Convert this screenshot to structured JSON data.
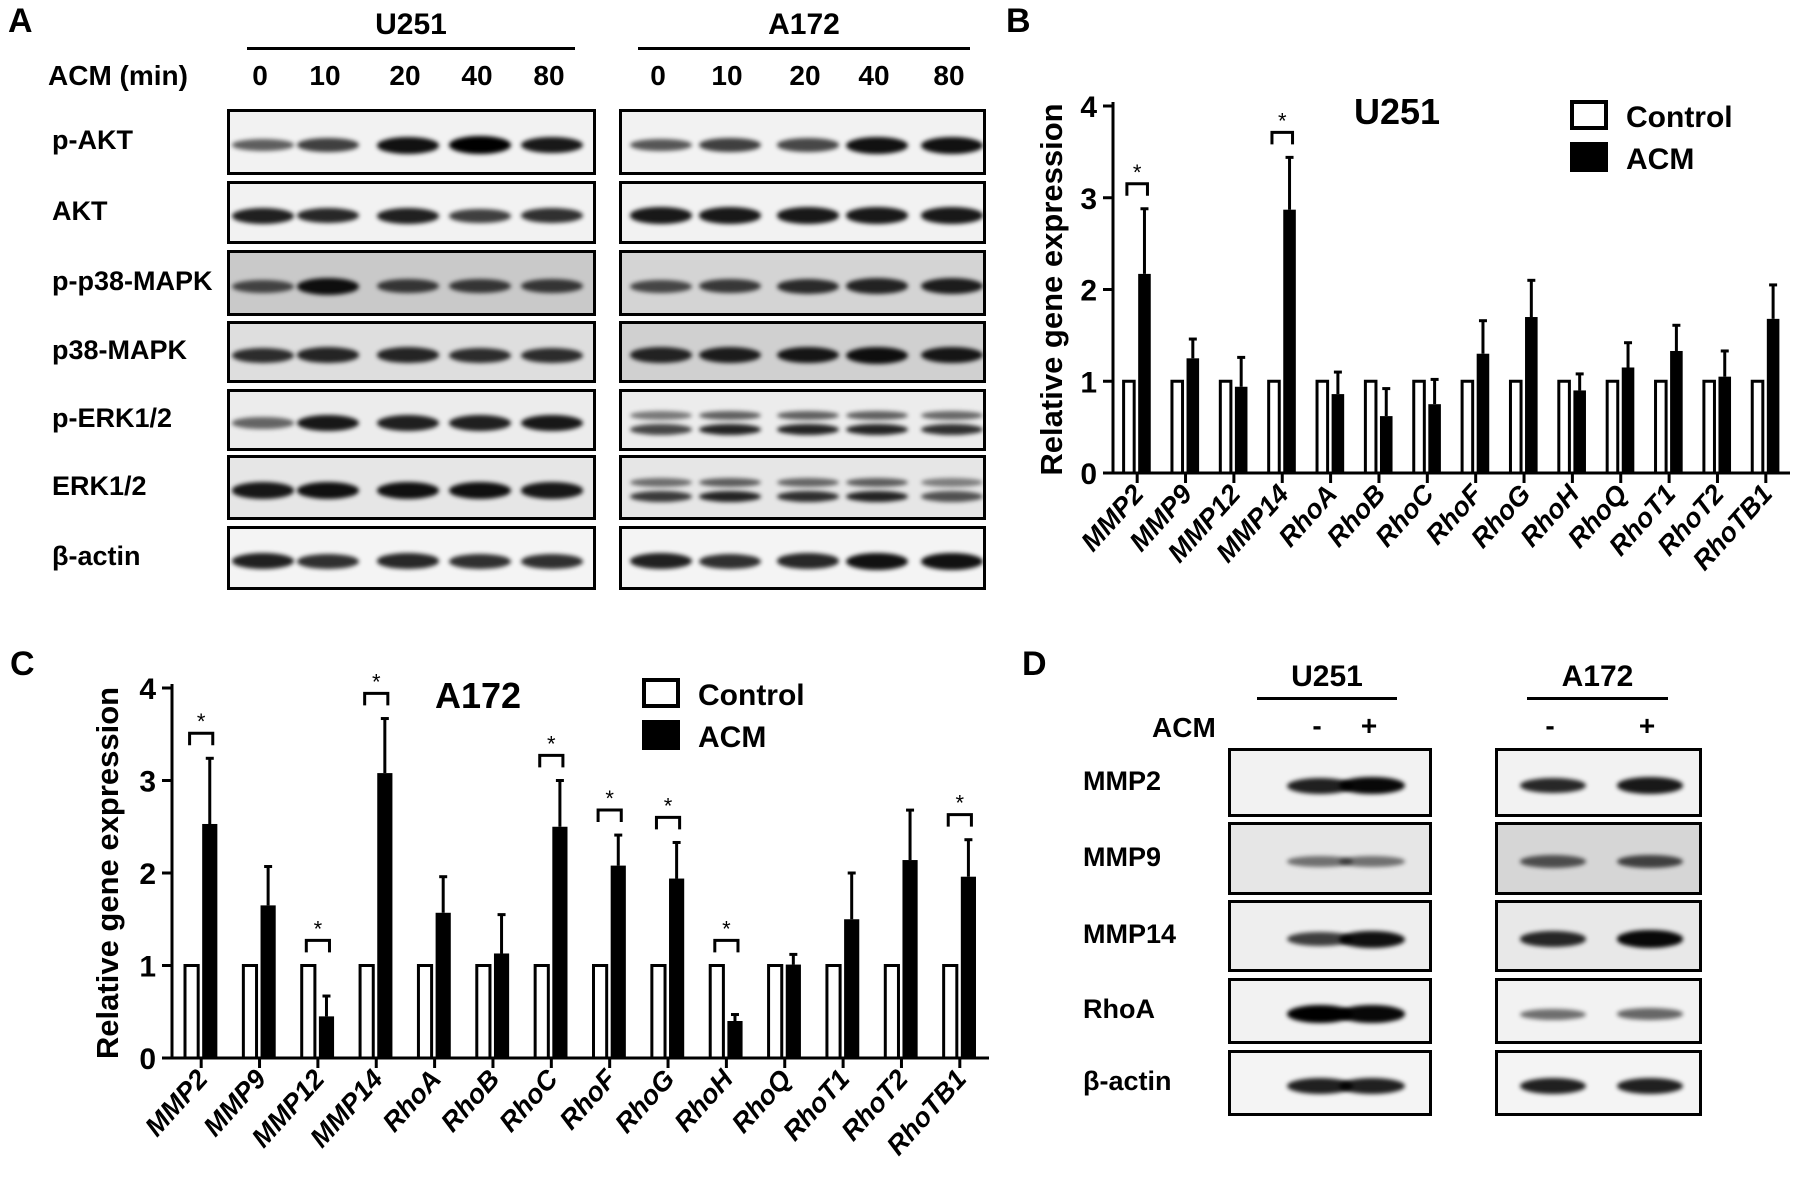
{
  "panel_a": {
    "label": "A",
    "row_label_header": "ACM (min)",
    "timepoints": [
      "0",
      "10",
      "20",
      "40",
      "80"
    ],
    "cell_lines": [
      {
        "name": "U251",
        "rows": [
          {
            "protein": "p-AKT",
            "band_intensity": [
              0.4,
              0.6,
              0.9,
              1,
              0.85
            ],
            "background": "#f2f2f2",
            "doublet": false
          },
          {
            "protein": "AKT",
            "band_intensity": [
              0.8,
              0.75,
              0.8,
              0.6,
              0.7
            ],
            "background": "#f2f2f2",
            "doublet": false
          },
          {
            "protein": "p-p38-MAPK",
            "band_intensity": [
              0.5,
              0.9,
              0.6,
              0.6,
              0.6
            ],
            "background": "#c9c9c9",
            "doublet": false
          },
          {
            "protein": "p38-MAPK",
            "band_intensity": [
              0.7,
              0.75,
              0.75,
              0.7,
              0.7
            ],
            "background": "#dedede",
            "doublet": false
          },
          {
            "protein": "p-ERK1/2",
            "band_intensity": [
              0.35,
              0.85,
              0.8,
              0.8,
              0.85
            ],
            "background": "#ececec",
            "doublet": false
          },
          {
            "protein": "ERK1/2",
            "band_intensity": [
              0.85,
              0.9,
              0.9,
              0.9,
              0.85
            ],
            "background": "#e6e6e6",
            "doublet": false
          },
          {
            "protein": "β-actin",
            "band_intensity": [
              0.8,
              0.7,
              0.75,
              0.7,
              0.7
            ],
            "background": "#f4f4f4",
            "doublet": false
          }
        ]
      },
      {
        "name": "A172",
        "rows": [
          {
            "protein": "p-AKT",
            "band_intensity": [
              0.45,
              0.6,
              0.55,
              0.9,
              0.9
            ],
            "background": "#f2f2f2",
            "doublet": false
          },
          {
            "protein": "AKT",
            "band_intensity": [
              0.85,
              0.85,
              0.85,
              0.85,
              0.85
            ],
            "background": "#f2f2f2",
            "doublet": false
          },
          {
            "protein": "p-p38-MAPK",
            "band_intensity": [
              0.5,
              0.6,
              0.7,
              0.75,
              0.8
            ],
            "background": "#d4d4d4",
            "doublet": false
          },
          {
            "protein": "p38-MAPK",
            "band_intensity": [
              0.75,
              0.8,
              0.85,
              0.9,
              0.85
            ],
            "background": "#d0d0d0",
            "doublet": false
          },
          {
            "protein": "p-ERK1/2",
            "band_intensity": [
              0.7,
              0.85,
              0.85,
              0.85,
              0.8
            ],
            "background": "#ececec",
            "doublet": true
          },
          {
            "protein": "ERK1/2",
            "band_intensity": [
              0.75,
              0.85,
              0.8,
              0.85,
              0.65
            ],
            "background": "#e6e6e6",
            "doublet": true
          },
          {
            "protein": "β-actin",
            "band_intensity": [
              0.8,
              0.7,
              0.75,
              0.9,
              0.9
            ],
            "background": "#f4f4f4",
            "doublet": false
          }
        ]
      }
    ]
  },
  "panel_d": {
    "label": "D",
    "row_label_header": "ACM",
    "conditions": [
      "-",
      "+"
    ],
    "cell_lines": [
      {
        "name": "U251",
        "rows": [
          {
            "protein": "MMP2",
            "band_intensity": [
              0.8,
              0.95
            ],
            "background": "#f2f2f2"
          },
          {
            "protein": "MMP9",
            "band_intensity": [
              0.25,
              0.25
            ],
            "background": "#e6e6e6"
          },
          {
            "protein": "MMP14",
            "band_intensity": [
              0.6,
              0.9
            ],
            "background": "#eeeeee"
          },
          {
            "protein": "RhoA",
            "band_intensity": [
              1,
              0.95
            ],
            "background": "#f2f2f2"
          },
          {
            "protein": "β-actin",
            "band_intensity": [
              0.8,
              0.8
            ],
            "background": "#f4f4f4"
          }
        ]
      },
      {
        "name": "A172",
        "rows": [
          {
            "protein": "MMP2",
            "band_intensity": [
              0.75,
              0.85
            ],
            "background": "#f2f2f2"
          },
          {
            "protein": "MMP9",
            "band_intensity": [
              0.45,
              0.55
            ],
            "background": "#d6d6d6"
          },
          {
            "protein": "MMP14",
            "band_intensity": [
              0.75,
              0.95
            ],
            "background": "#e8e8e8"
          },
          {
            "protein": "RhoA",
            "band_intensity": [
              0.3,
              0.35
            ],
            "background": "#f2f2f2"
          },
          {
            "protein": "β-actin",
            "band_intensity": [
              0.8,
              0.8
            ],
            "background": "#f4f4f4"
          }
        ]
      }
    ]
  },
  "chart_data": [
    {
      "panel": "B",
      "type": "bar",
      "title": "U251",
      "xlabel": "",
      "ylabel": "Relative gene expression",
      "ylim": [
        0,
        4
      ],
      "yticks": [
        "0",
        "1",
        "2",
        "3",
        "4"
      ],
      "legend_position": "top-right",
      "grid": false,
      "categories": [
        "MMP2",
        "MMP9",
        "MMP12",
        "MMP14",
        "RhoA",
        "RhoB",
        "RhoC",
        "RhoF",
        "RhoG",
        "RhoH",
        "RhoQ",
        "RhoT1",
        "RhoT2",
        "RhoTB1"
      ],
      "series": [
        {
          "name": "Control",
          "fill": "#ffffff",
          "values": [
            1,
            1,
            1,
            1,
            1,
            1,
            1,
            1,
            1,
            1,
            1,
            1,
            1,
            1
          ]
        },
        {
          "name": "ACM",
          "fill": "#000000",
          "values": [
            2.17,
            1.25,
            0.94,
            2.87,
            0.86,
            0.62,
            0.75,
            1.3,
            1.7,
            0.9,
            1.15,
            1.33,
            1.05,
            1.68
          ],
          "error_upper": [
            2.88,
            1.46,
            1.26,
            3.44,
            1.1,
            0.92,
            1.02,
            1.66,
            2.1,
            1.08,
            1.42,
            1.61,
            1.33,
            2.05
          ]
        }
      ],
      "significance_marker": "*",
      "significant": [
        "MMP2",
        "MMP14"
      ]
    },
    {
      "panel": "C",
      "type": "bar",
      "title": "A172",
      "xlabel": "",
      "ylabel": "Relative gene expression",
      "ylim": [
        0,
        4
      ],
      "yticks": [
        "0",
        "1",
        "2",
        "3",
        "4"
      ],
      "legend_position": "top-right",
      "grid": false,
      "categories": [
        "MMP2",
        "MMP9",
        "MMP12",
        "MMP14",
        "RhoA",
        "RhoB",
        "RhoC",
        "RhoF",
        "RhoG",
        "RhoH",
        "RhoQ",
        "RhoT1",
        "RhoT2",
        "RhoTB1"
      ],
      "series": [
        {
          "name": "Control",
          "fill": "#ffffff",
          "values": [
            1,
            1,
            1,
            1,
            1,
            1,
            1,
            1,
            1,
            1,
            1,
            1,
            1,
            1
          ]
        },
        {
          "name": "ACM",
          "fill": "#000000",
          "values": [
            2.53,
            1.65,
            0.45,
            3.08,
            1.57,
            1.13,
            2.5,
            2.08,
            1.94,
            0.4,
            1.01,
            1.5,
            2.14,
            1.96
          ],
          "error_upper": [
            3.24,
            2.07,
            0.67,
            3.67,
            1.96,
            1.55,
            3.0,
            2.41,
            2.33,
            0.47,
            1.12,
            2.0,
            2.68,
            2.36
          ]
        }
      ],
      "significance_marker": "*",
      "significant": [
        "MMP2",
        "MMP12",
        "MMP14",
        "RhoC",
        "RhoF",
        "RhoG",
        "RhoH",
        "RhoTB1"
      ]
    }
  ]
}
